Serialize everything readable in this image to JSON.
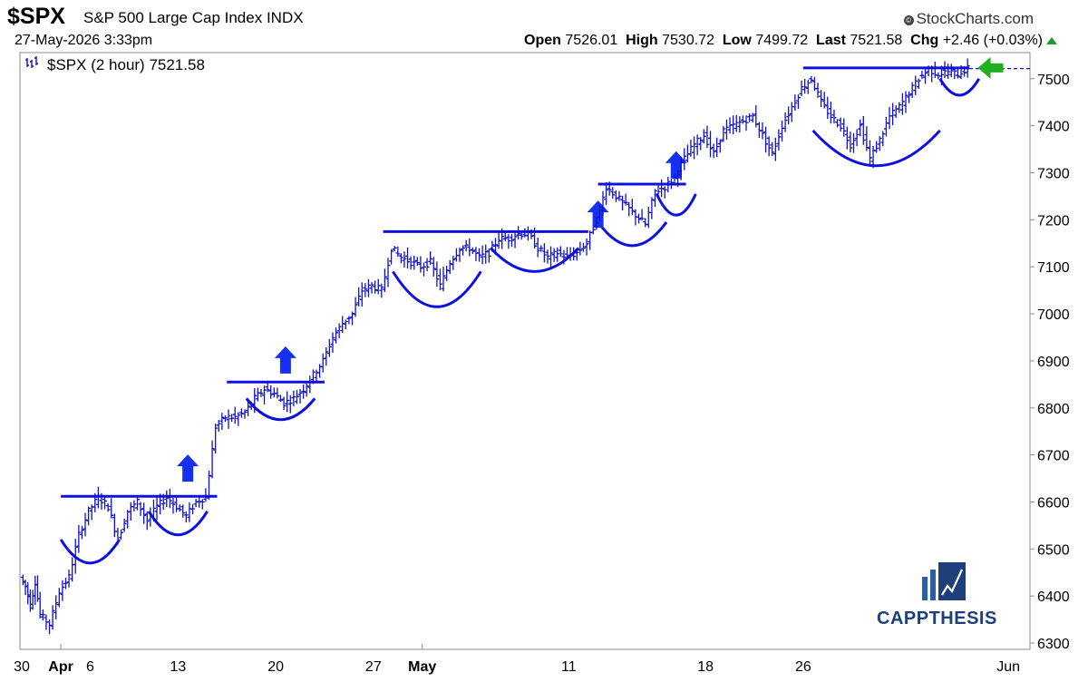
{
  "header": {
    "symbol": "$SPX",
    "description": "S&P 500 Large Cap Index",
    "exchange": "INDX",
    "credit": "StockCharts.com",
    "credit_icon": "copyright-icon",
    "datetime": "27-May-2026 3:33pm",
    "open_label": "Open",
    "open": "7526.01",
    "high_label": "High",
    "high": "7530.72",
    "low_label": "Low",
    "low": "7499.72",
    "last_label": "Last",
    "last": "7521.58",
    "chg_label": "Chg",
    "chg": "+2.46 (+0.03%)",
    "chg_icon": "up-triangle-icon"
  },
  "legend_text": "$SPX (2 hour) 7521.58",
  "watermark": "CAPPTHESIS",
  "colors": {
    "price": "#1010c8",
    "annotation": "#0d10e0",
    "current_arrow": "#22b022",
    "up_arrow": "#1530f0",
    "grid": "#e6e6e6",
    "logo": "#2a5fa8"
  },
  "chart_data": {
    "type": "line",
    "style": "ohlc-bars",
    "interval": "2 hour",
    "series": [
      {
        "name": "$SPX (2 hour)",
        "values": [
          [
            30,
            6440
          ],
          [
            30.5,
            6420
          ],
          [
            31,
            6380
          ],
          [
            31.5,
            6430
          ],
          [
            32,
            6360
          ],
          [
            33,
            6340
          ],
          [
            34,
            6410
          ],
          [
            35,
            6440
          ],
          [
            36,
            6530
          ],
          [
            37,
            6580
          ],
          [
            38,
            6610
          ],
          [
            39,
            6590
          ],
          [
            40,
            6520
          ],
          [
            41,
            6580
          ],
          [
            42,
            6600
          ],
          [
            43,
            6560
          ],
          [
            44,
            6590
          ],
          [
            45,
            6610
          ],
          [
            46,
            6590
          ],
          [
            47,
            6570
          ],
          [
            48,
            6600
          ],
          [
            49,
            6610
          ],
          [
            50,
            6760
          ],
          [
            51,
            6780
          ],
          [
            52,
            6780
          ],
          [
            53,
            6790
          ],
          [
            54,
            6820
          ],
          [
            55,
            6840
          ],
          [
            56,
            6830
          ],
          [
            57,
            6810
          ],
          [
            58,
            6820
          ],
          [
            59,
            6840
          ],
          [
            60,
            6870
          ],
          [
            61,
            6900
          ],
          [
            62,
            6950
          ],
          [
            63,
            6980
          ],
          [
            64,
            7000
          ],
          [
            65,
            7050
          ],
          [
            66,
            7060
          ],
          [
            67,
            7050
          ],
          [
            68,
            7140
          ],
          [
            69,
            7120
          ],
          [
            70,
            7110
          ],
          [
            71,
            7100
          ],
          [
            72,
            7110
          ],
          [
            73,
            7060
          ],
          [
            74,
            7110
          ],
          [
            75,
            7140
          ],
          [
            76,
            7140
          ],
          [
            77,
            7120
          ],
          [
            78,
            7130
          ],
          [
            79,
            7160
          ],
          [
            80,
            7160
          ],
          [
            81,
            7170
          ],
          [
            82,
            7170
          ],
          [
            83,
            7140
          ],
          [
            84,
            7120
          ],
          [
            85,
            7130
          ],
          [
            86,
            7120
          ],
          [
            87,
            7130
          ],
          [
            88,
            7150
          ],
          [
            89,
            7200
          ],
          [
            90,
            7270
          ],
          [
            91,
            7250
          ],
          [
            92,
            7230
          ],
          [
            93,
            7210
          ],
          [
            94,
            7190
          ],
          [
            95,
            7260
          ],
          [
            96,
            7270
          ],
          [
            97,
            7290
          ],
          [
            98,
            7330
          ],
          [
            99,
            7360
          ],
          [
            100,
            7380
          ],
          [
            101,
            7340
          ],
          [
            102,
            7390
          ],
          [
            103,
            7400
          ],
          [
            104,
            7410
          ],
          [
            105,
            7420
          ],
          [
            106,
            7380
          ],
          [
            107,
            7340
          ],
          [
            108,
            7400
          ],
          [
            109,
            7440
          ],
          [
            110,
            7480
          ],
          [
            111,
            7500
          ],
          [
            112,
            7450
          ],
          [
            113,
            7420
          ],
          [
            114,
            7400
          ],
          [
            115,
            7360
          ],
          [
            116,
            7400
          ],
          [
            117,
            7330
          ],
          [
            118,
            7370
          ],
          [
            119,
            7420
          ],
          [
            120,
            7440
          ],
          [
            121,
            7470
          ],
          [
            122,
            7500
          ],
          [
            123,
            7520
          ],
          [
            124,
            7510
          ],
          [
            125,
            7515
          ],
          [
            126,
            7510
          ],
          [
            127,
            7521.58
          ]
        ]
      }
    ],
    "x_ticks": [
      "30",
      "Apr",
      "6",
      "13",
      "20",
      "27",
      "May",
      "11",
      "18",
      "26",
      "Jun"
    ],
    "x_ticks_bold": [
      "Apr",
      "May"
    ],
    "y_ticks": [
      6300,
      6400,
      6500,
      6600,
      6700,
      6800,
      6900,
      7000,
      7100,
      7200,
      7300,
      7400,
      7500
    ],
    "ylim": [
      6290,
      7590
    ],
    "grid": false,
    "last_value": 7521.58,
    "annotations": {
      "resistance_lines": [
        {
          "x0": 34,
          "x1": 50,
          "y": 6612
        },
        {
          "x0": 51,
          "x1": 61,
          "y": 6855
        },
        {
          "x0": 67,
          "x1": 88,
          "y": 7175
        },
        {
          "x0": 89,
          "x1": 98,
          "y": 7276
        },
        {
          "x0": 110,
          "x1": 127,
          "y": 7523
        }
      ],
      "bases": [
        {
          "x0": 34,
          "x1": 40,
          "bottom": 6470,
          "top": 6520
        },
        {
          "x0": 43,
          "x1": 49,
          "bottom": 6530,
          "top": 6580
        },
        {
          "x0": 53,
          "x1": 60,
          "bottom": 6775,
          "top": 6820
        },
        {
          "x0": 68,
          "x1": 77,
          "bottom": 7015,
          "top": 7090
        },
        {
          "x0": 78,
          "x1": 87,
          "bottom": 7090,
          "top": 7140
        },
        {
          "x0": 89,
          "x1": 96,
          "bottom": 7145,
          "top": 7195
        },
        {
          "x0": 95,
          "x1": 99,
          "bottom": 7210,
          "top": 7255
        },
        {
          "x0": 111,
          "x1": 124,
          "bottom": 7315,
          "top": 7390
        },
        {
          "x0": 124,
          "x1": 128,
          "bottom": 7465,
          "top": 7500
        }
      ],
      "breakout_arrows": [
        {
          "x": 47,
          "y": 6670
        },
        {
          "x": 57,
          "y": 6900
        },
        {
          "x": 89,
          "y": 7210
        },
        {
          "x": 97,
          "y": 7315
        }
      ],
      "current_price_arrow": {
        "x": 129,
        "y": 7523
      }
    }
  }
}
